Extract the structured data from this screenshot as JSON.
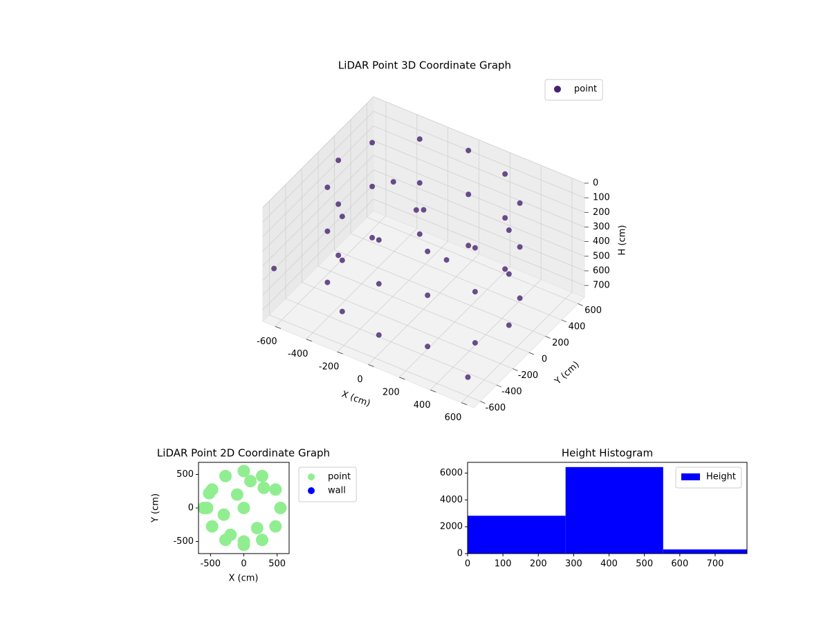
{
  "chart_data": [
    {
      "type": "scatter3d",
      "title": "LiDAR Point 3D Coordinate Graph",
      "xlabel": "X (cm)",
      "ylabel": "Y (cm)",
      "zlabel": "H (cm)",
      "series": [
        {
          "name": "point",
          "color": "#46226e",
          "x": [
            550,
            476,
            275,
            0,
            -275,
            -476,
            -550,
            -476,
            -275,
            0,
            275,
            476,
            550,
            476,
            275,
            0,
            -275,
            -476,
            -550,
            -476,
            -275,
            0,
            275,
            476,
            550,
            476,
            275,
            0,
            -275,
            -476,
            -550,
            -476,
            -275,
            0,
            275,
            476,
            0,
            -100,
            -300,
            200,
            -650,
            600
          ],
          "y": [
            0,
            275,
            476,
            550,
            476,
            275,
            0,
            -275,
            -476,
            -550,
            -476,
            -275,
            0,
            275,
            476,
            550,
            476,
            275,
            0,
            -275,
            -476,
            -550,
            -476,
            -275,
            0,
            275,
            476,
            550,
            476,
            275,
            0,
            -275,
            -476,
            -550,
            -476,
            -275,
            0,
            100,
            200,
            -100,
            -600,
            -600
          ],
          "z": [
            0,
            0,
            0,
            0,
            0,
            0,
            0,
            0,
            0,
            0,
            0,
            0,
            300,
            300,
            300,
            300,
            300,
            300,
            300,
            300,
            300,
            300,
            300,
            300,
            650,
            650,
            650,
            650,
            650,
            650,
            650,
            650,
            650,
            650,
            650,
            650,
            100,
            200,
            150,
            300,
            450,
            650
          ]
        }
      ],
      "xlim": [
        -680,
        680
      ],
      "ylim": [
        -680,
        680
      ],
      "zlim": [
        0,
        780
      ],
      "zinverted": true,
      "xticks": [
        -600,
        -400,
        -200,
        0,
        200,
        400,
        600
      ],
      "yticks": [
        -600,
        -400,
        -200,
        0,
        200,
        400,
        600
      ],
      "zticks": [
        0,
        100,
        200,
        300,
        400,
        500,
        600,
        700
      ],
      "grid": true,
      "legend": "upper right"
    },
    {
      "type": "scatter",
      "title": "LiDAR Point 2D Coordinate Graph",
      "xlabel": "X (cm)",
      "ylabel": "Y (cm)",
      "series": [
        {
          "name": "point",
          "color": "#90ee90",
          "x": [
            550,
            476,
            275,
            0,
            -275,
            -476,
            -550,
            -476,
            -275,
            0,
            275,
            476,
            0,
            -100,
            200,
            -300,
            300,
            0,
            -200,
            100,
            -600,
            -520
          ],
          "y": [
            0,
            275,
            476,
            550,
            476,
            275,
            0,
            -275,
            -476,
            -550,
            -476,
            -275,
            0,
            200,
            -300,
            -100,
            300,
            -500,
            -400,
            400,
            0,
            220
          ]
        },
        {
          "name": "wall",
          "color": "#0000ff",
          "x": [],
          "y": []
        }
      ],
      "xlim": [
        -680,
        680
      ],
      "ylim": [
        -680,
        680
      ],
      "xticks": [
        -500,
        0,
        500
      ],
      "yticks": [
        -500,
        0,
        500
      ],
      "legend": "outside right"
    },
    {
      "type": "histogram",
      "title": "Height Histogram",
      "bins": [
        0,
        277,
        553,
        790
      ],
      "series": [
        {
          "name": "Height",
          "color": "#0000ff",
          "values": [
            2820,
            6450,
            310
          ]
        }
      ],
      "xlim": [
        0,
        790
      ],
      "ylim": [
        0,
        6800
      ],
      "xticks": [
        0,
        100,
        200,
        300,
        400,
        500,
        600,
        700
      ],
      "yticks": [
        0,
        2000,
        4000,
        6000
      ],
      "legend": "upper right"
    }
  ]
}
